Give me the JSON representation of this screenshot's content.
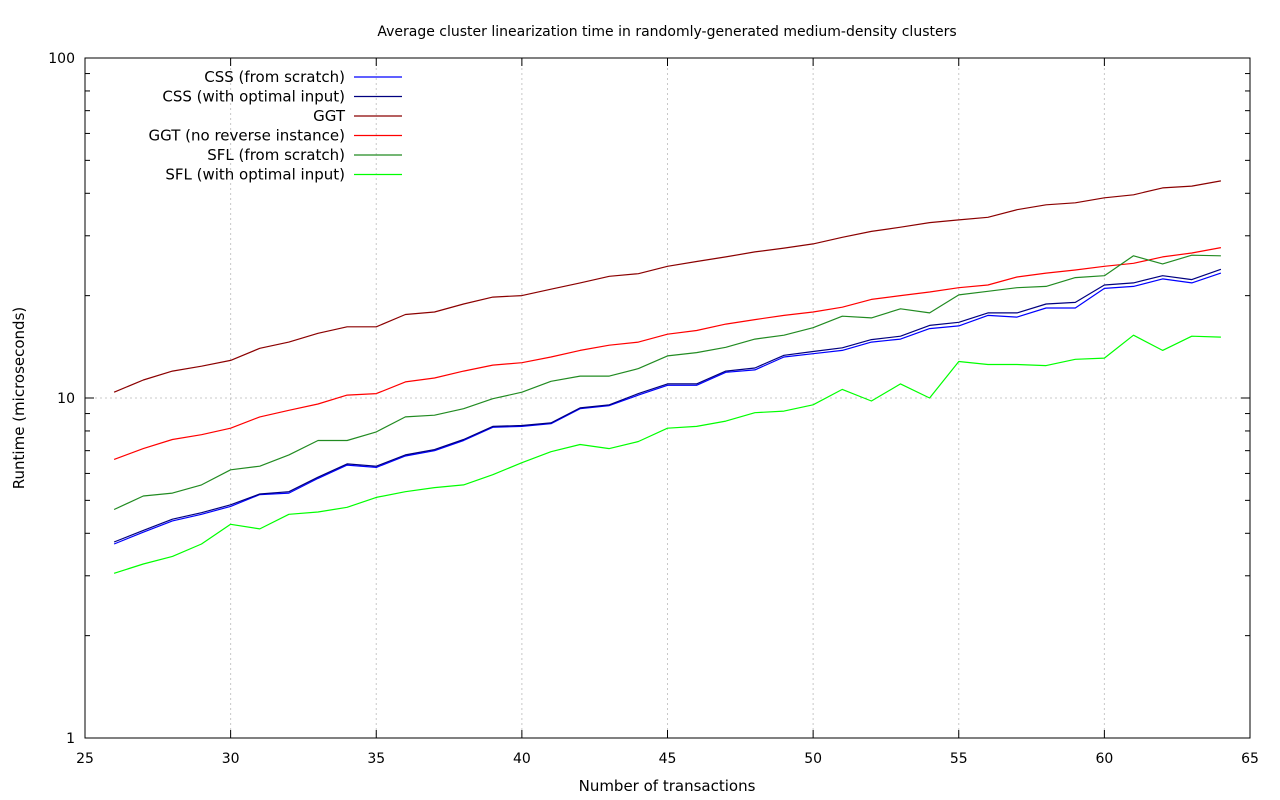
{
  "chart_data": {
    "type": "line",
    "title": "Average cluster linearization time in randomly-generated medium-density clusters",
    "xlabel": "Number of transactions",
    "ylabel": "Runtime (microseconds)",
    "xlim": [
      25,
      65
    ],
    "ylim": [
      1,
      100
    ],
    "yscale": "log",
    "grid": true,
    "legend_position": "top-left",
    "x_ticks": [
      "25",
      "30",
      "35",
      "40",
      "45",
      "50",
      "55",
      "60",
      "65"
    ],
    "y_ticks": [
      "1",
      "10",
      "100"
    ],
    "x": [
      26,
      27,
      28,
      29,
      30,
      31,
      32,
      33,
      34,
      35,
      36,
      37,
      38,
      39,
      40,
      41,
      42,
      43,
      44,
      45,
      46,
      47,
      48,
      49,
      50,
      51,
      52,
      53,
      54,
      55,
      56,
      57,
      58,
      59,
      60,
      61,
      62,
      63,
      64
    ],
    "series": [
      {
        "name": "CSS (from scratch)",
        "color": "#0000ff",
        "values": [
          3.72,
          4.03,
          4.35,
          4.55,
          4.8,
          5.2,
          5.25,
          5.8,
          6.35,
          6.25,
          6.75,
          7.0,
          7.5,
          8.2,
          8.25,
          8.4,
          9.3,
          9.5,
          10.2,
          10.9,
          10.9,
          11.9,
          12.1,
          13.2,
          13.5,
          13.8,
          14.6,
          14.9,
          16.0,
          16.3,
          17.5,
          17.3,
          18.4,
          18.4,
          21.0,
          21.3,
          22.4,
          21.8,
          23.3
        ]
      },
      {
        "name": "CSS (with optimal input)",
        "color": "#00007f",
        "values": [
          3.77,
          4.08,
          4.4,
          4.6,
          4.85,
          5.22,
          5.3,
          5.85,
          6.4,
          6.3,
          6.8,
          7.05,
          7.55,
          8.25,
          8.3,
          8.45,
          9.35,
          9.55,
          10.3,
          11.0,
          11.0,
          12.0,
          12.25,
          13.35,
          13.7,
          14.05,
          14.85,
          15.2,
          16.35,
          16.7,
          17.8,
          17.8,
          18.9,
          19.1,
          21.5,
          21.8,
          22.9,
          22.3,
          23.9
        ]
      },
      {
        "name": "GGT",
        "color": "#8b0000",
        "values": [
          10.4,
          11.3,
          12.0,
          12.4,
          12.9,
          14.0,
          14.6,
          15.5,
          16.2,
          16.2,
          17.6,
          17.9,
          18.9,
          19.8,
          20.0,
          20.9,
          21.8,
          22.8,
          23.2,
          24.4,
          25.2,
          26.0,
          26.9,
          27.6,
          28.4,
          29.7,
          30.9,
          31.8,
          32.8,
          33.4,
          34.0,
          35.8,
          37.0,
          37.5,
          38.8,
          39.6,
          41.5,
          42.0,
          43.5
        ]
      },
      {
        "name": "GGT (no reverse instance)",
        "color": "#ff0000",
        "values": [
          6.6,
          7.1,
          7.55,
          7.8,
          8.15,
          8.8,
          9.2,
          9.6,
          10.2,
          10.3,
          11.15,
          11.45,
          12.0,
          12.5,
          12.7,
          13.2,
          13.8,
          14.3,
          14.6,
          15.4,
          15.8,
          16.5,
          17.0,
          17.5,
          17.9,
          18.5,
          19.5,
          20.0,
          20.5,
          21.1,
          21.5,
          22.7,
          23.3,
          23.8,
          24.4,
          24.9,
          26.0,
          26.7,
          27.7
        ]
      },
      {
        "name": "SFL (from scratch)",
        "color": "#228b22",
        "values": [
          4.7,
          5.15,
          5.25,
          5.55,
          6.15,
          6.3,
          6.8,
          7.5,
          7.5,
          7.95,
          8.8,
          8.9,
          9.3,
          9.95,
          10.4,
          11.2,
          11.6,
          11.6,
          12.2,
          13.3,
          13.6,
          14.1,
          14.9,
          15.3,
          16.1,
          17.4,
          17.2,
          18.3,
          17.8,
          20.1,
          20.6,
          21.1,
          21.3,
          22.6,
          22.9,
          26.2,
          24.8,
          26.3,
          26.2
        ]
      },
      {
        "name": "SFL (with optimal input)",
        "color": "#00ff00",
        "values": [
          3.05,
          3.25,
          3.42,
          3.72,
          4.25,
          4.12,
          4.55,
          4.62,
          4.77,
          5.1,
          5.3,
          5.45,
          5.55,
          5.95,
          6.45,
          6.95,
          7.3,
          7.1,
          7.45,
          8.15,
          8.25,
          8.55,
          9.05,
          9.15,
          9.55,
          10.6,
          9.8,
          11.0,
          10.0,
          12.8,
          12.55,
          12.55,
          12.45,
          13.0,
          13.1,
          15.3,
          13.8,
          15.2,
          15.1
        ]
      }
    ]
  }
}
